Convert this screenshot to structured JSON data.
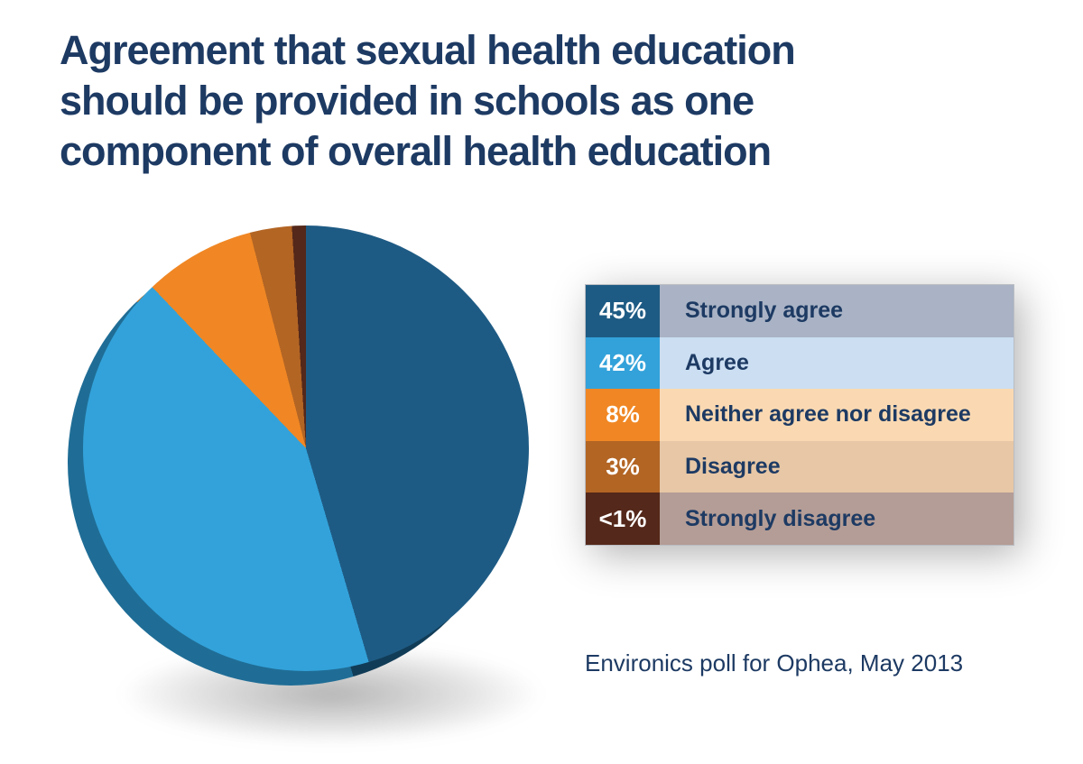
{
  "page": {
    "background": "#ffffff",
    "text_color": "#1d3a63"
  },
  "chart_data": {
    "type": "pie",
    "title": "Agreement that sexual health education should be provided in schools as one component of overall health education",
    "source": "Environics poll for Ophea, May 2013",
    "legend_position": "right",
    "style_3d": true,
    "start_angle_deg": 0,
    "slices": [
      {
        "label": "Strongly agree",
        "percent_label": "45%",
        "value": 45,
        "color": "#1e5b84",
        "side_color": "#113c57",
        "row_bg": "#a9b3c5"
      },
      {
        "label": "Agree",
        "percent_label": "42%",
        "value": 42,
        "color": "#33a2da",
        "side_color": "#1f6d96",
        "row_bg": "#cbdef2"
      },
      {
        "label": "Neither agree nor disagree",
        "percent_label": "8%",
        "value": 8,
        "color": "#f08724",
        "side_color": "#c4660f",
        "row_bg": "#fad9b2"
      },
      {
        "label": "Disagree",
        "percent_label": "3%",
        "value": 3,
        "color": "#b36524",
        "side_color": "#8a4a15",
        "row_bg": "#e7c7a5"
      },
      {
        "label": "Strongly disagree",
        "percent_label": "<1%",
        "value": 1,
        "color": "#54281a",
        "side_color": "#3a1a0e",
        "row_bg": "#b49d96"
      }
    ]
  }
}
